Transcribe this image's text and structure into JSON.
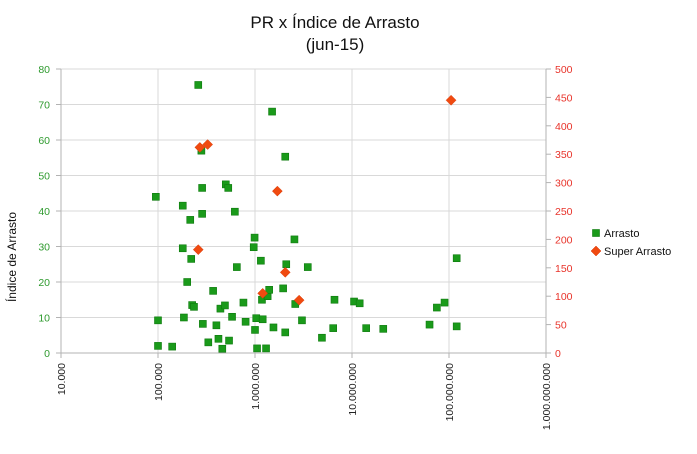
{
  "chart_data": {
    "type": "scatter",
    "title": "PR x Índice de Arrasto",
    "subtitle": "(jun-15)",
    "ylabel": "Índice de Arrasto",
    "xlabel": "",
    "x_scale": "log",
    "xlim": [
      10000,
      1000000000
    ],
    "x_ticks": [
      10000,
      100000,
      1000000,
      10000000,
      100000000,
      1000000000
    ],
    "x_tick_labels": [
      "10.000",
      "100.000",
      "1.000.000",
      "10.000.000",
      "100.000.000",
      "1.000.000.000"
    ],
    "ylim_left": [
      0,
      80
    ],
    "y_ticks_left": [
      "0",
      "10",
      "20",
      "30",
      "40",
      "50",
      "60",
      "70",
      "80"
    ],
    "ylim_right": [
      0,
      500
    ],
    "y_ticks_right": [
      "0",
      "50",
      "100",
      "150",
      "200",
      "250",
      "300",
      "350",
      "400",
      "450",
      "500"
    ],
    "grid": true,
    "legend_position": "right",
    "series": [
      {
        "name": "Arrasto",
        "axis": "left",
        "color": "#1a9a1a",
        "marker": "square",
        "points": [
          {
            "x": 95000,
            "y": 44
          },
          {
            "x": 100000,
            "y": 9.2
          },
          {
            "x": 100000,
            "y": 2
          },
          {
            "x": 140000,
            "y": 1.8
          },
          {
            "x": 180000,
            "y": 41.5
          },
          {
            "x": 180000,
            "y": 29.5
          },
          {
            "x": 185000,
            "y": 10
          },
          {
            "x": 200000,
            "y": 20
          },
          {
            "x": 215000,
            "y": 37.5
          },
          {
            "x": 220000,
            "y": 26.5
          },
          {
            "x": 225000,
            "y": 13.5
          },
          {
            "x": 235000,
            "y": 13
          },
          {
            "x": 260000,
            "y": 75.5
          },
          {
            "x": 280000,
            "y": 57
          },
          {
            "x": 285000,
            "y": 46.5
          },
          {
            "x": 285000,
            "y": 39.2
          },
          {
            "x": 290000,
            "y": 8.2
          },
          {
            "x": 330000,
            "y": 3
          },
          {
            "x": 370000,
            "y": 17.5
          },
          {
            "x": 400000,
            "y": 7.8
          },
          {
            "x": 420000,
            "y": 4
          },
          {
            "x": 440000,
            "y": 12.5
          },
          {
            "x": 460000,
            "y": 1.2
          },
          {
            "x": 490000,
            "y": 13.4
          },
          {
            "x": 500000,
            "y": 47.5
          },
          {
            "x": 530000,
            "y": 46.5
          },
          {
            "x": 540000,
            "y": 3.5
          },
          {
            "x": 580000,
            "y": 10.2
          },
          {
            "x": 620000,
            "y": 39.8
          },
          {
            "x": 650000,
            "y": 24.2
          },
          {
            "x": 760000,
            "y": 14.2
          },
          {
            "x": 800000,
            "y": 8.8
          },
          {
            "x": 970000,
            "y": 29.8
          },
          {
            "x": 990000,
            "y": 32.5
          },
          {
            "x": 1000000,
            "y": 6.5
          },
          {
            "x": 1030000,
            "y": 9.8
          },
          {
            "x": 1050000,
            "y": 1.3
          },
          {
            "x": 1150000,
            "y": 26
          },
          {
            "x": 1180000,
            "y": 15
          },
          {
            "x": 1200000,
            "y": 9.5
          },
          {
            "x": 1300000,
            "y": 1.3
          },
          {
            "x": 1350000,
            "y": 16
          },
          {
            "x": 1400000,
            "y": 17.8
          },
          {
            "x": 1500000,
            "y": 68
          },
          {
            "x": 1550000,
            "y": 7.2
          },
          {
            "x": 1950000,
            "y": 18.2
          },
          {
            "x": 2050000,
            "y": 55.3
          },
          {
            "x": 2100000,
            "y": 25
          },
          {
            "x": 2050000,
            "y": 5.8
          },
          {
            "x": 2550000,
            "y": 32
          },
          {
            "x": 2600000,
            "y": 13.8
          },
          {
            "x": 3050000,
            "y": 9.2
          },
          {
            "x": 3500000,
            "y": 24.2
          },
          {
            "x": 4900000,
            "y": 4.3
          },
          {
            "x": 6400000,
            "y": 7
          },
          {
            "x": 6600000,
            "y": 15
          },
          {
            "x": 10500000,
            "y": 14.5
          },
          {
            "x": 12000000,
            "y": 14
          },
          {
            "x": 14000000,
            "y": 7
          },
          {
            "x": 21000000,
            "y": 6.8
          },
          {
            "x": 63000000,
            "y": 8
          },
          {
            "x": 75000000,
            "y": 12.8
          },
          {
            "x": 90000000,
            "y": 14.2
          },
          {
            "x": 120000000,
            "y": 26.7
          },
          {
            "x": 120000000,
            "y": 7.5
          }
        ]
      },
      {
        "name": "Super Arrasto",
        "axis": "right",
        "color": "#f04a10",
        "marker": "diamond",
        "points": [
          {
            "x": 260000,
            "y": 182
          },
          {
            "x": 270000,
            "y": 362
          },
          {
            "x": 325000,
            "y": 367
          },
          {
            "x": 1200000,
            "y": 105
          },
          {
            "x": 1700000,
            "y": 285
          },
          {
            "x": 2050000,
            "y": 142
          },
          {
            "x": 2850000,
            "y": 93
          },
          {
            "x": 105000000,
            "y": 445
          }
        ]
      }
    ]
  }
}
